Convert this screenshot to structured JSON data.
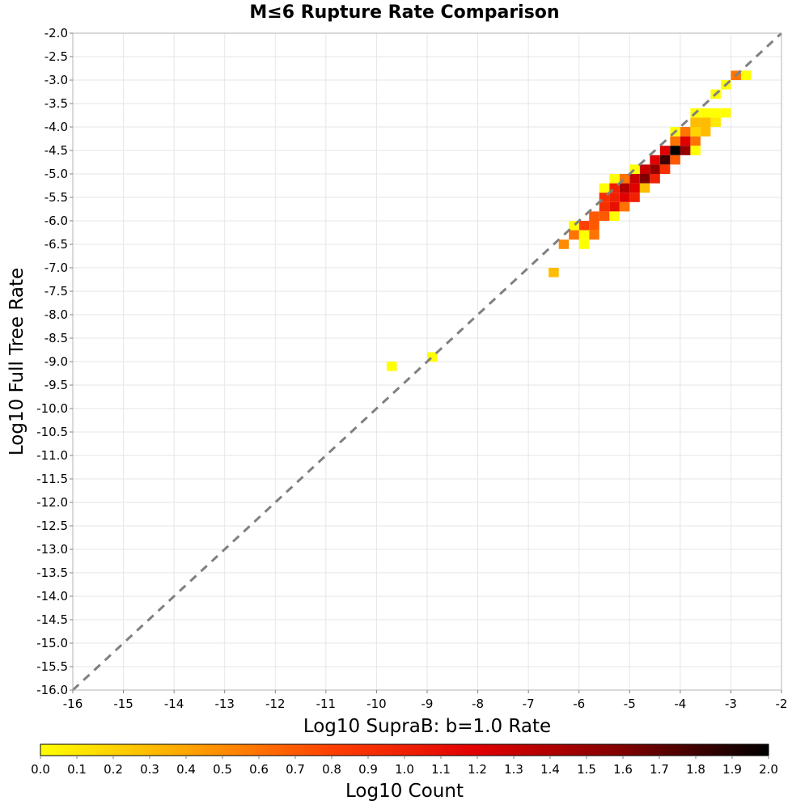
{
  "chart_data": {
    "type": "heatmap",
    "title": "M≤6 Rupture Rate Comparison",
    "xlabel": "Log10 SupraB: b=1.0 Rate",
    "ylabel": "Log10 Full Tree Rate",
    "xlim": [
      -16,
      -2
    ],
    "ylim": [
      -16,
      -2
    ],
    "x_ticks": [
      "-16",
      "-15",
      "-14",
      "-13",
      "-12",
      "-11",
      "-10",
      "-9",
      "-8",
      "-7",
      "-6",
      "-5",
      "-4",
      "-3",
      "-2"
    ],
    "y_ticks": [
      "-2.0",
      "-2.5",
      "-3.0",
      "-3.5",
      "-4.0",
      "-4.5",
      "-5.0",
      "-5.5",
      "-6.0",
      "-6.5",
      "-7.0",
      "-7.5",
      "-8.0",
      "-8.5",
      "-9.0",
      "-9.5",
      "-10.0",
      "-10.5",
      "-11.0",
      "-11.5",
      "-12.0",
      "-12.5",
      "-13.0",
      "-13.5",
      "-14.0",
      "-14.5",
      "-15.0",
      "-15.5",
      "-16.0"
    ],
    "grid": true,
    "reference_line": "y = x (dashed gray)",
    "colorbar": {
      "label": "Log10 Count",
      "range": [
        0,
        2
      ],
      "ticks": [
        "0.0",
        "0.1",
        "0.2",
        "0.3",
        "0.4",
        "0.5",
        "0.6",
        "0.7",
        "0.8",
        "0.9",
        "1.0",
        "1.1",
        "1.2",
        "1.3",
        "1.4",
        "1.5",
        "1.6",
        "1.7",
        "1.8",
        "1.9",
        "2.0"
      ],
      "colors": [
        "#ffff00",
        "#ffa500",
        "#ff4000",
        "#e00000",
        "#800000",
        "#000000"
      ]
    },
    "cells": [
      {
        "x": -2.9,
        "y": -2.9,
        "v": 0.6
      },
      {
        "x": -2.7,
        "y": -2.9,
        "v": 0.0
      },
      {
        "x": -3.1,
        "y": -3.1,
        "v": 0.0
      },
      {
        "x": -3.3,
        "y": -3.3,
        "v": 0.0
      },
      {
        "x": -3.1,
        "y": -3.7,
        "v": 0.0
      },
      {
        "x": -3.3,
        "y": -3.7,
        "v": 0.0
      },
      {
        "x": -3.5,
        "y": -3.7,
        "v": 0.0
      },
      {
        "x": -3.7,
        "y": -3.7,
        "v": 0.0
      },
      {
        "x": -3.3,
        "y": -3.9,
        "v": 0.1
      },
      {
        "x": -3.5,
        "y": -3.9,
        "v": 0.3
      },
      {
        "x": -3.7,
        "y": -3.9,
        "v": 0.3
      },
      {
        "x": -3.5,
        "y": -4.1,
        "v": 0.3
      },
      {
        "x": -3.7,
        "y": -4.1,
        "v": 0.2
      },
      {
        "x": -3.9,
        "y": -4.1,
        "v": 0.6
      },
      {
        "x": -4.1,
        "y": -4.1,
        "v": 0.0
      },
      {
        "x": -3.7,
        "y": -4.3,
        "v": 0.6
      },
      {
        "x": -3.9,
        "y": -4.3,
        "v": 1.2
      },
      {
        "x": -4.1,
        "y": -4.3,
        "v": 0.6
      },
      {
        "x": -3.7,
        "y": -4.5,
        "v": 0.0
      },
      {
        "x": -3.9,
        "y": -4.5,
        "v": 1.5
      },
      {
        "x": -4.1,
        "y": -4.5,
        "v": 2.0
      },
      {
        "x": -4.3,
        "y": -4.5,
        "v": 1.2
      },
      {
        "x": -4.1,
        "y": -4.7,
        "v": 0.7
      },
      {
        "x": -4.3,
        "y": -4.7,
        "v": 1.8
      },
      {
        "x": -4.5,
        "y": -4.7,
        "v": 1.2
      },
      {
        "x": -4.3,
        "y": -4.9,
        "v": 0.9
      },
      {
        "x": -4.5,
        "y": -4.9,
        "v": 1.5
      },
      {
        "x": -4.7,
        "y": -4.9,
        "v": 1.3
      },
      {
        "x": -4.9,
        "y": -4.9,
        "v": 0.0
      },
      {
        "x": -4.5,
        "y": -5.1,
        "v": 1.0
      },
      {
        "x": -4.7,
        "y": -5.1,
        "v": 1.6
      },
      {
        "x": -4.9,
        "y": -5.1,
        "v": 1.3
      },
      {
        "x": -5.1,
        "y": -5.1,
        "v": 0.6
      },
      {
        "x": -5.3,
        "y": -5.1,
        "v": 0.0
      },
      {
        "x": -4.7,
        "y": -5.3,
        "v": 0.3
      },
      {
        "x": -4.9,
        "y": -5.3,
        "v": 1.2
      },
      {
        "x": -5.1,
        "y": -5.3,
        "v": 1.4
      },
      {
        "x": -5.3,
        "y": -5.3,
        "v": 1.0
      },
      {
        "x": -5.5,
        "y": -5.3,
        "v": 0.0
      },
      {
        "x": -4.9,
        "y": -5.5,
        "v": 1.0
      },
      {
        "x": -5.1,
        "y": -5.5,
        "v": 1.2
      },
      {
        "x": -5.3,
        "y": -5.5,
        "v": 1.0
      },
      {
        "x": -5.5,
        "y": -5.5,
        "v": 0.9
      },
      {
        "x": -5.1,
        "y": -5.7,
        "v": 0.6
      },
      {
        "x": -5.3,
        "y": -5.7,
        "v": 1.1
      },
      {
        "x": -5.5,
        "y": -5.7,
        "v": 0.9
      },
      {
        "x": -5.3,
        "y": -5.9,
        "v": 0.0
      },
      {
        "x": -5.5,
        "y": -5.9,
        "v": 0.7
      },
      {
        "x": -5.7,
        "y": -5.9,
        "v": 0.7
      },
      {
        "x": -5.7,
        "y": -6.1,
        "v": 0.7
      },
      {
        "x": -5.9,
        "y": -6.1,
        "v": 0.8
      },
      {
        "x": -6.1,
        "y": -6.1,
        "v": 0.0
      },
      {
        "x": -5.7,
        "y": -6.3,
        "v": 0.6
      },
      {
        "x": -5.9,
        "y": -6.3,
        "v": 0.0
      },
      {
        "x": -6.1,
        "y": -6.3,
        "v": 0.6
      },
      {
        "x": -5.9,
        "y": -6.5,
        "v": 0.0
      },
      {
        "x": -6.3,
        "y": -6.5,
        "v": 0.5
      },
      {
        "x": -6.5,
        "y": -7.1,
        "v": 0.3
      },
      {
        "x": -8.9,
        "y": -8.9,
        "v": 0.0
      },
      {
        "x": -9.7,
        "y": -9.1,
        "v": 0.0
      }
    ]
  }
}
